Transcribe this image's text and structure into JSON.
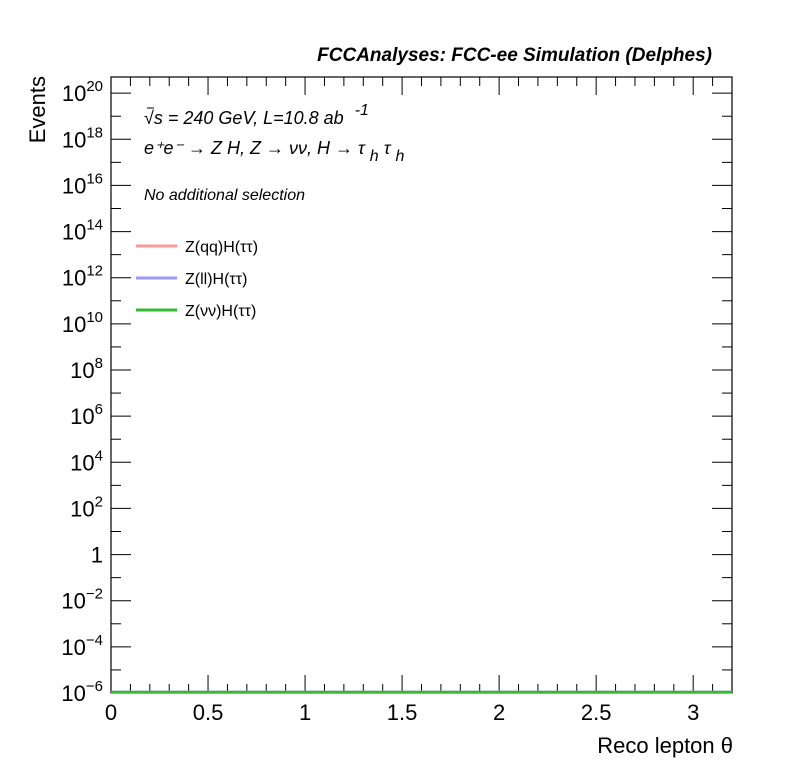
{
  "chart_data": {
    "type": "line",
    "title": "FCCAnalyses: FCC-ee Simulation (Delphes)",
    "xlabel": "Reco lepton θ",
    "ylabel": "Events",
    "xlim": [
      0,
      3.2
    ],
    "ylim_exponent": [
      -6,
      20.7
    ],
    "yscale": "log",
    "x_ticks": [
      "0",
      "0.5",
      "1",
      "1.5",
      "2",
      "2.5",
      "3"
    ],
    "x_tick_values": [
      0,
      0.5,
      1,
      1.5,
      2,
      2.5,
      3
    ],
    "y_tick_exponents": [
      -6,
      -4,
      -2,
      0,
      2,
      4,
      6,
      8,
      10,
      12,
      14,
      16,
      18,
      20
    ],
    "y_tick_labels": [
      {
        "base": "10",
        "exp": "−6"
      },
      {
        "base": "10",
        "exp": "−4"
      },
      {
        "base": "10",
        "exp": "−2"
      },
      {
        "base": "1",
        "exp": ""
      },
      {
        "base": "10",
        "exp": "2"
      },
      {
        "base": "10",
        "exp": "4"
      },
      {
        "base": "10",
        "exp": "6"
      },
      {
        "base": "10",
        "exp": "8"
      },
      {
        "base": "10",
        "exp": "10"
      },
      {
        "base": "10",
        "exp": "12"
      },
      {
        "base": "10",
        "exp": "14"
      },
      {
        "base": "10",
        "exp": "16"
      },
      {
        "base": "10",
        "exp": "18"
      },
      {
        "base": "10",
        "exp": "20"
      }
    ],
    "grid": false,
    "legend_position": "top-left",
    "annotations": {
      "energy_lumi": "√s = 240 GeV, L=10.8 ab",
      "energy_lumi_sup": "-1",
      "process_main": "e⁺e⁻ → Z H, Z → νν, H → τ",
      "process_sub1": "h",
      "process_tau": "τ",
      "process_sub2": "h",
      "selection": "No additional selection"
    },
    "series": [
      {
        "name": "Z(qq)H(ττ)",
        "color": "#ff9999",
        "x": [
          0,
          3.2
        ],
        "y": [
          1e-06,
          1e-06
        ]
      },
      {
        "name": "Z(ll)H(ττ)",
        "color": "#9999ff",
        "x": [
          0,
          3.2
        ],
        "y": [
          1e-06,
          1e-06
        ]
      },
      {
        "name": "Z(νν)H(ττ)",
        "color": "#33bb33",
        "x": [
          0,
          3.2
        ],
        "y": [
          1e-06,
          1e-06
        ]
      }
    ]
  }
}
